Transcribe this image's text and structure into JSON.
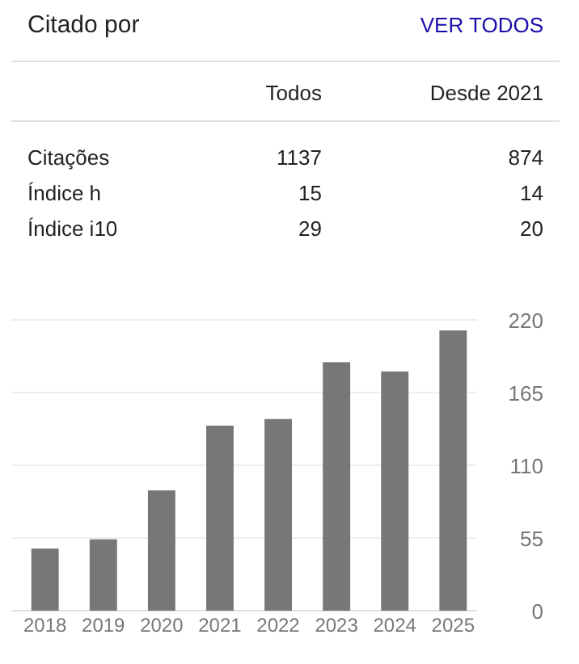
{
  "chart_data": [
    {
      "type": "other",
      "title": "Citado por",
      "annotations": [
        "VER TODOS"
      ],
      "data_labels": true,
      "categories": [
        "Citações",
        "Índice h",
        "Índice i10"
      ],
      "series": [
        {
          "name": "Todos",
          "values": [
            1137,
            15,
            29
          ]
        },
        {
          "name": "Desde 2021",
          "values": [
            874,
            14,
            20
          ]
        }
      ]
    },
    {
      "type": "bar",
      "categories": [
        "2018",
        "2019",
        "2020",
        "2021",
        "2022",
        "2023",
        "2024",
        "2025"
      ],
      "values": [
        47,
        54,
        91,
        140,
        145,
        188,
        181,
        212
      ],
      "color": "#777777",
      "ylim": [
        0,
        220
      ],
      "yticks": [
        0,
        55,
        110,
        165,
        220
      ],
      "grid": "y"
    }
  ]
}
